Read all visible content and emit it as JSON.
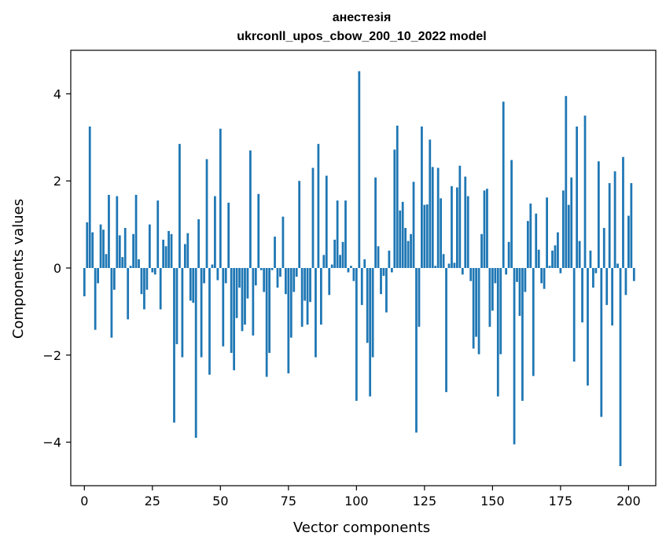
{
  "chart_data": {
    "type": "bar",
    "title": "анестезія",
    "subtitle": "ukrconll_upos_cbow_200_10_2022 model",
    "xlabel": "Vector components",
    "ylabel": "Components values",
    "xlim": [
      -5,
      210
    ],
    "ylim": [
      -5,
      5
    ],
    "xticks": [
      0,
      25,
      50,
      75,
      100,
      125,
      150,
      175,
      200
    ],
    "yticks": [
      -4,
      -2,
      0,
      2,
      4
    ],
    "ytick_labels": [
      "−4",
      "−2",
      "0",
      "2",
      "4"
    ],
    "bar_color": "#1f77b4",
    "grid": false,
    "values": [
      -0.65,
      1.05,
      3.25,
      0.82,
      -1.42,
      -0.35,
      1.0,
      0.88,
      0.32,
      1.68,
      -1.6,
      -0.5,
      1.65,
      0.75,
      0.25,
      0.92,
      -1.18,
      0.05,
      0.78,
      1.68,
      0.2,
      -0.6,
      -0.95,
      -0.5,
      1.0,
      -0.1,
      -0.15,
      1.55,
      -0.95,
      0.65,
      0.5,
      0.85,
      0.78,
      -3.55,
      -1.75,
      2.85,
      -2.05,
      0.55,
      0.8,
      -0.75,
      -0.8,
      -3.9,
      1.12,
      -2.05,
      -0.35,
      2.5,
      -2.45,
      0.08,
      1.65,
      -0.28,
      3.2,
      -1.8,
      -0.35,
      1.5,
      -1.95,
      -2.35,
      -1.15,
      -0.45,
      -1.45,
      -1.3,
      -0.7,
      2.7,
      -1.55,
      -0.4,
      1.7,
      -0.05,
      -0.55,
      -2.5,
      -1.95,
      -0.05,
      0.72,
      -0.45,
      -0.2,
      1.18,
      -0.6,
      -2.42,
      -1.6,
      -0.55,
      -0.2,
      2.0,
      -1.35,
      -0.75,
      -1.3,
      -0.78,
      2.3,
      -2.05,
      2.85,
      -1.3,
      0.3,
      2.12,
      -0.62,
      0.08,
      0.65,
      1.55,
      0.3,
      0.6,
      1.55,
      -0.1,
      0.05,
      -0.3,
      -3.05,
      4.52,
      -0.85,
      0.2,
      -1.72,
      -2.95,
      -2.05,
      2.08,
      0.5,
      -0.6,
      -0.18,
      -1.02,
      0.4,
      -0.1,
      2.72,
      3.27,
      1.32,
      1.52,
      0.92,
      0.62,
      0.78,
      1.98,
      -3.78,
      -1.35,
      3.25,
      1.45,
      1.46,
      2.95,
      2.32,
      0.05,
      2.3,
      1.6,
      0.32,
      -2.85,
      0.1,
      1.88,
      0.12,
      1.85,
      2.35,
      -0.15,
      2.1,
      1.65,
      -0.3,
      -1.85,
      -1.58,
      -1.98,
      0.78,
      1.78,
      1.82,
      -1.35,
      -0.98,
      -0.35,
      -2.95,
      -1.98,
      3.82,
      -0.15,
      0.6,
      2.48,
      -4.05,
      -0.32,
      -1.1,
      -3.05,
      -0.55,
      1.08,
      1.48,
      -2.48,
      1.25,
      0.42,
      -0.35,
      -0.48,
      1.62,
      0.05,
      0.4,
      0.52,
      0.82,
      -0.12,
      1.78,
      3.95,
      1.45,
      2.08,
      -2.15,
      3.25,
      0.62,
      -1.25,
      3.5,
      -2.7,
      0.4,
      -0.45,
      -0.12,
      2.45,
      -3.42,
      0.92,
      -0.85,
      1.95,
      -1.32,
      2.22,
      0.1,
      -4.55,
      2.55,
      -0.62,
      1.2,
      1.95,
      -0.3
    ]
  }
}
